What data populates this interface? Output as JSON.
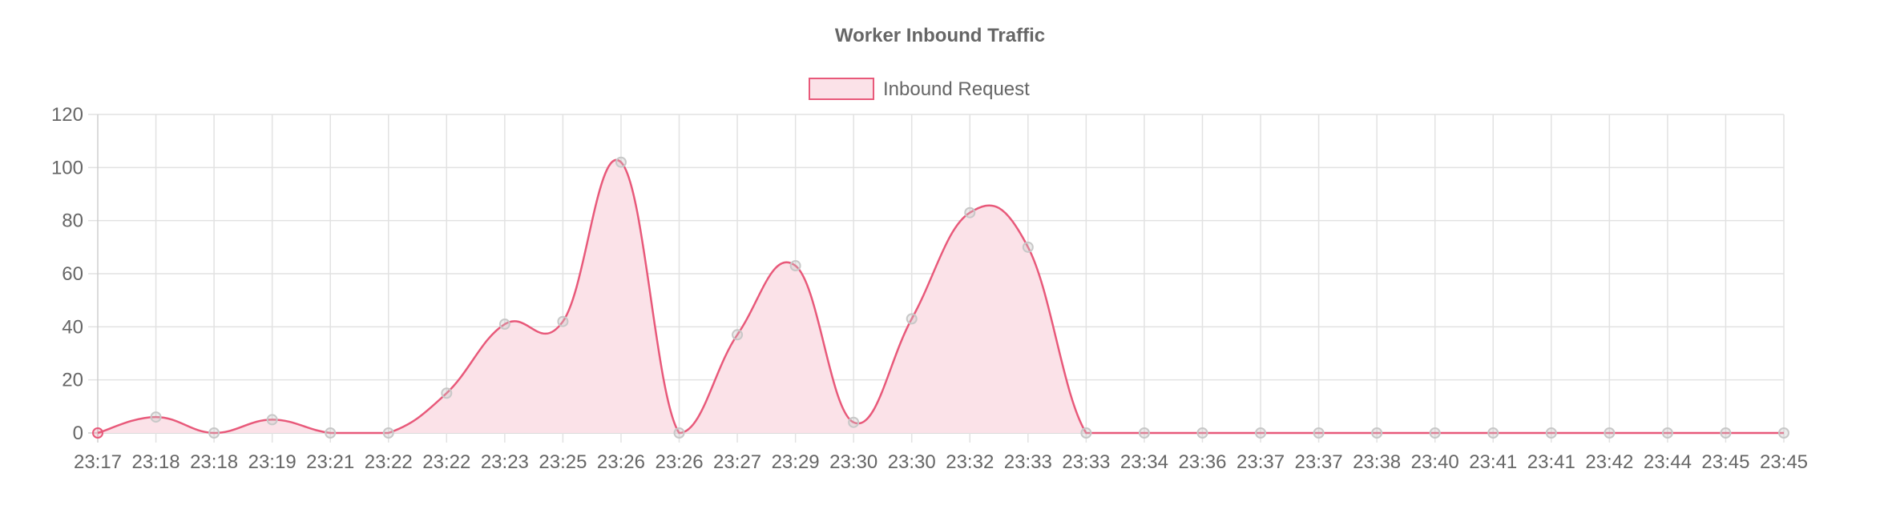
{
  "chart_data": {
    "type": "line",
    "title": "Worker Inbound Traffic",
    "xlabel": "",
    "ylabel": "",
    "ylim": [
      0,
      120
    ],
    "yticks": [
      0,
      20,
      40,
      60,
      80,
      100,
      120
    ],
    "fill": true,
    "smooth": true,
    "grid": true,
    "legend_position": "top-center",
    "colors": {
      "line": "#e8597a",
      "fill": "#fbe2e8",
      "point": "#d3d3d3",
      "grid": "#e2e2e2",
      "axis": "#cfcfcf",
      "text": "#666666"
    },
    "categories": [
      "23:17",
      "23:18",
      "23:18",
      "23:19",
      "23:21",
      "23:22",
      "23:22",
      "23:23",
      "23:25",
      "23:26",
      "23:26",
      "23:27",
      "23:29",
      "23:30",
      "23:30",
      "23:32",
      "23:33",
      "23:33",
      "23:34",
      "23:36",
      "23:37",
      "23:37",
      "23:38",
      "23:40",
      "23:41",
      "23:41",
      "23:42",
      "23:44",
      "23:45",
      "23:45"
    ],
    "series": [
      {
        "name": "Inbound Request",
        "values": [
          0,
          6,
          0,
          5,
          0,
          0,
          15,
          41,
          42,
          102,
          0,
          37,
          63,
          4,
          43,
          83,
          70,
          0,
          0,
          0,
          0,
          0,
          0,
          0,
          0,
          0,
          0,
          0,
          0,
          0
        ]
      }
    ]
  }
}
